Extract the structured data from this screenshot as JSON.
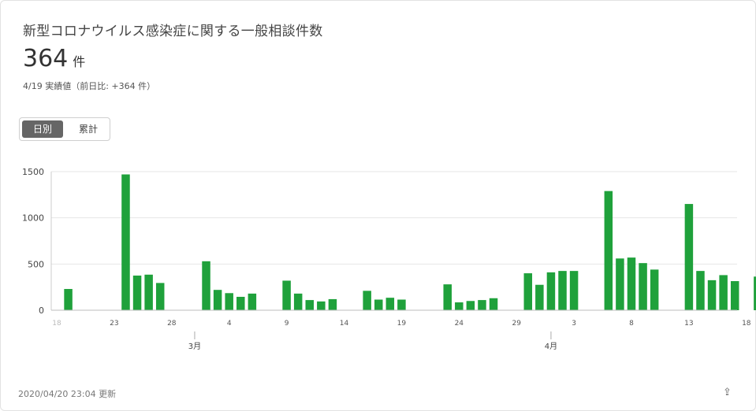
{
  "header": {
    "title": "新型コロナウイルス感染症に関する一般相談件数",
    "value": "364",
    "unit": "件",
    "subtitle": "4/19 実績値（前日比: +364 件）"
  },
  "toggle": {
    "daily_label": "日別",
    "cumulative_label": "累計",
    "selected": "daily"
  },
  "footer": {
    "updated": "2020/04/20 23:04 更新"
  },
  "colors": {
    "bar": "#1fa13b",
    "grid": "#e6e6e6",
    "axis": "#999999"
  },
  "chart_data": {
    "type": "bar",
    "title": "",
    "ylim": [
      0,
      1500
    ],
    "y_ticks": [
      0,
      500,
      1000,
      1500
    ],
    "x_start": "2020-02-18",
    "day_ticks": [
      {
        "date": "2020-02-18",
        "label": "18",
        "faded": true
      },
      {
        "date": "2020-02-23",
        "label": "23"
      },
      {
        "date": "2020-02-28",
        "label": "28"
      },
      {
        "date": "2020-03-04",
        "label": "4"
      },
      {
        "date": "2020-03-09",
        "label": "9"
      },
      {
        "date": "2020-03-14",
        "label": "14"
      },
      {
        "date": "2020-03-19",
        "label": "19"
      },
      {
        "date": "2020-03-24",
        "label": "24"
      },
      {
        "date": "2020-03-29",
        "label": "29"
      },
      {
        "date": "2020-04-03",
        "label": "3"
      },
      {
        "date": "2020-04-08",
        "label": "8"
      },
      {
        "date": "2020-04-13",
        "label": "13"
      },
      {
        "date": "2020-04-18",
        "label": "18"
      }
    ],
    "month_ticks": [
      {
        "date": "2020-03-01",
        "label": "3月"
      },
      {
        "date": "2020-04-01",
        "label": "4月"
      }
    ],
    "dates": [
      "2020-02-18",
      "2020-02-19",
      "2020-02-20",
      "2020-02-21",
      "2020-02-22",
      "2020-02-23",
      "2020-02-24",
      "2020-02-25",
      "2020-02-26",
      "2020-02-27",
      "2020-02-28",
      "2020-02-29",
      "2020-03-01",
      "2020-03-02",
      "2020-03-03",
      "2020-03-04",
      "2020-03-05",
      "2020-03-06",
      "2020-03-07",
      "2020-03-08",
      "2020-03-09",
      "2020-03-10",
      "2020-03-11",
      "2020-03-12",
      "2020-03-13",
      "2020-03-14",
      "2020-03-15",
      "2020-03-16",
      "2020-03-17",
      "2020-03-18",
      "2020-03-19",
      "2020-03-20",
      "2020-03-21",
      "2020-03-22",
      "2020-03-23",
      "2020-03-24",
      "2020-03-25",
      "2020-03-26",
      "2020-03-27",
      "2020-03-28",
      "2020-03-29",
      "2020-03-30",
      "2020-03-31",
      "2020-04-01",
      "2020-04-02",
      "2020-04-03",
      "2020-04-04",
      "2020-04-05",
      "2020-04-06",
      "2020-04-07",
      "2020-04-08",
      "2020-04-09",
      "2020-04-10",
      "2020-04-11",
      "2020-04-12",
      "2020-04-13",
      "2020-04-14",
      "2020-04-15",
      "2020-04-16",
      "2020-04-17",
      "2020-04-18",
      "2020-04-19"
    ],
    "values": [
      0,
      230,
      0,
      0,
      0,
      0,
      1470,
      375,
      385,
      295,
      0,
      0,
      0,
      530,
      220,
      185,
      145,
      180,
      0,
      0,
      320,
      180,
      110,
      95,
      120,
      0,
      0,
      210,
      115,
      135,
      115,
      0,
      0,
      0,
      280,
      85,
      100,
      110,
      130,
      0,
      0,
      400,
      275,
      410,
      425,
      425,
      0,
      0,
      1290,
      560,
      570,
      510,
      440,
      0,
      0,
      1150,
      425,
      325,
      380,
      315,
      0,
      364
    ]
  }
}
